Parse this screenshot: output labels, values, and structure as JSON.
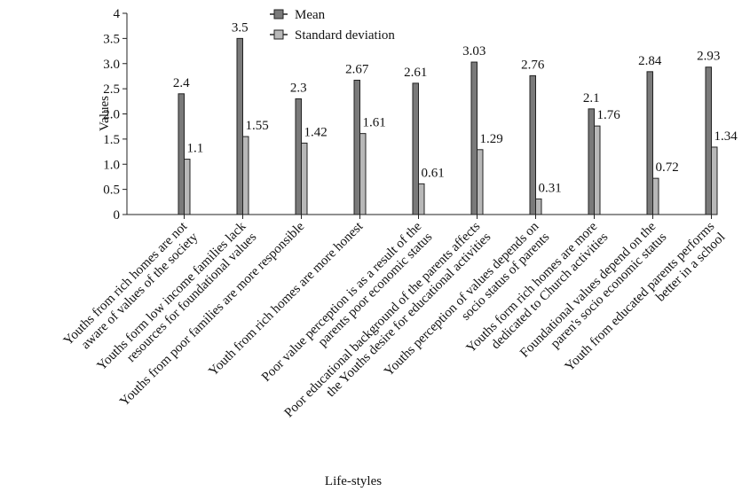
{
  "chart_data": {
    "type": "bar",
    "xlabel": "Life-styles",
    "ylabel": "Values",
    "ylim": [
      0,
      4
    ],
    "yticks": [
      "0",
      "0.5",
      "1.0",
      "1.5",
      "2.0",
      "2.5",
      "3.0",
      "3.5",
      "4"
    ],
    "ytick_values": [
      0,
      0.5,
      1.0,
      1.5,
      2.0,
      2.5,
      3.0,
      3.5,
      4
    ],
    "legend_position": "top-center",
    "grid": false,
    "colors": {
      "mean": "#7a7a7a",
      "sd": "#b8b8b8",
      "edge": "#222222"
    },
    "categories": [
      [
        "Youths from rich homes are not",
        "aware of values of the society"
      ],
      [
        "Youths form low income families lack",
        "resources for foundational values"
      ],
      [
        "Youths from poor families are more responsible"
      ],
      [
        "Youth from rich homes are more honest"
      ],
      [
        "Poor value perception is as a result of the",
        "parents poor economic status"
      ],
      [
        "Poor educational background of the parents  affects",
        "the Youths desire for educational activities"
      ],
      [
        "Youths perception of values depends on",
        "socio status of parents"
      ],
      [
        "Youths form rich homes are more",
        "dedicated to Church activities"
      ],
      [
        "Foundational values depend on the",
        "paren's socio economic status"
      ],
      [
        "Youth from educated parents performs",
        "better in a school"
      ]
    ],
    "series": [
      {
        "name": "Mean",
        "values": [
          2.4,
          3.5,
          2.3,
          2.67,
          2.61,
          3.03,
          2.76,
          2.1,
          2.84,
          2.93
        ],
        "labels": [
          "2.4",
          "3.5",
          "2.3",
          "2.67",
          "2.61",
          "3.03",
          "2.76",
          "2.1",
          "2.84",
          "2.93"
        ]
      },
      {
        "name": "Standard deviation",
        "values": [
          1.1,
          1.55,
          1.42,
          1.61,
          0.61,
          1.29,
          0.31,
          1.76,
          0.72,
          1.34
        ],
        "labels": [
          "1.1",
          "1.55",
          "1.42",
          "1.61",
          "0.61",
          "1.29",
          "0.31",
          "1.76",
          "0.72",
          "1.34"
        ]
      }
    ]
  }
}
